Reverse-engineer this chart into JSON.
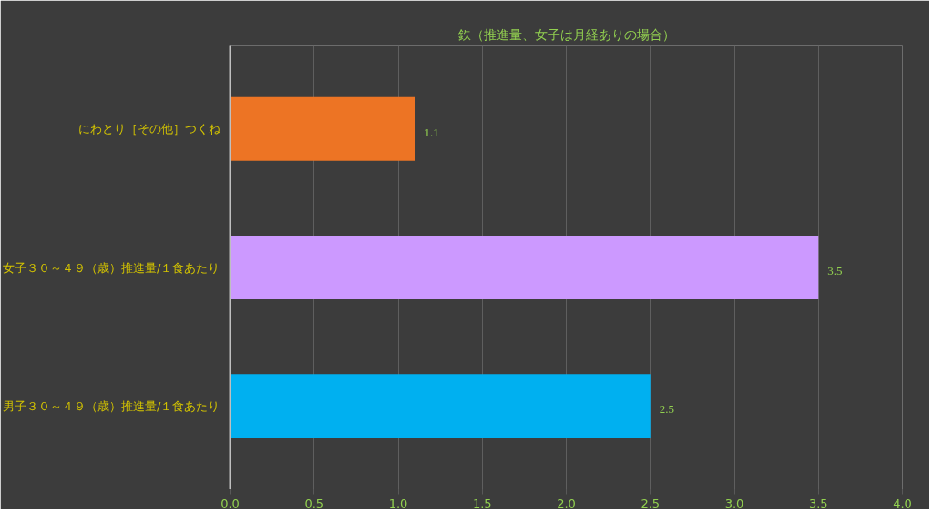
{
  "chart_data": {
    "type": "bar",
    "orientation": "horizontal",
    "title": "鉄（推進量、女子は月経ありの場合）",
    "categories": [
      "にわとり［その他］つくね",
      "女子３０～４９（歳）推進量/１食あたり",
      "男子３０～４９（歳）推進量/１食あたり"
    ],
    "values": [
      1.1,
      3.5,
      2.5
    ],
    "colors": [
      "#ed7424",
      "#cc99ff",
      "#00b0f0"
    ],
    "xlim": [
      0,
      4
    ],
    "xticks": [
      {
        "value": 0,
        "label": "0.0"
      },
      0.5,
      {
        "value": 1,
        "label": "1.0"
      },
      1.5,
      {
        "value": 2,
        "label": "2.0"
      },
      2.5,
      {
        "value": 3,
        "label": "3.0"
      },
      3.5,
      {
        "value": 4,
        "label": "4.0"
      }
    ],
    "grid": "x",
    "data_labels": true
  }
}
